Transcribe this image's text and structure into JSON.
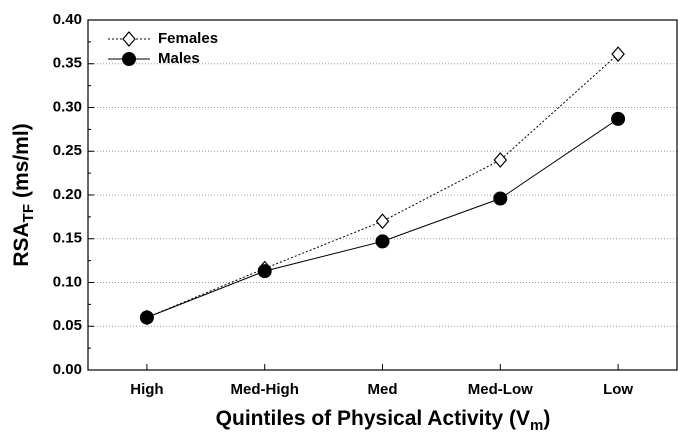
{
  "chart_data": {
    "type": "line",
    "x_label": {
      "main": "Quintiles of Physical Activity (V",
      "subscript": "m",
      "suffix": ")"
    },
    "y_label": {
      "main": "RSA",
      "subscript": "TF",
      "suffix": "(ms/ml)"
    },
    "categories": [
      "High",
      "Med-High",
      "Med",
      "Med-Low",
      "Low"
    ],
    "series": [
      {
        "name": "Females",
        "color": "#000000",
        "marker": "diamond",
        "marker_fill": "#ffffff",
        "dashed": true,
        "values": [
          0.06,
          0.116,
          0.17,
          0.24,
          0.361
        ]
      },
      {
        "name": "Males",
        "color": "#000000",
        "marker": "circle",
        "marker_fill": "#000000",
        "dashed": false,
        "values": [
          0.06,
          0.113,
          0.147,
          0.196,
          0.287
        ]
      }
    ],
    "ylim": [
      0,
      0.4
    ],
    "yticks": [
      {
        "value": 0,
        "label": "0.00"
      },
      {
        "value": 0.05,
        "label": "0.05"
      },
      {
        "value": 0.1,
        "label": "0.10"
      },
      {
        "value": 0.15,
        "label": "0.15"
      },
      {
        "value": 0.2,
        "label": "0.20"
      },
      {
        "value": 0.25,
        "label": "0.25"
      },
      {
        "value": 0.3,
        "label": "0.30"
      },
      {
        "value": 0.35,
        "label": "0.35"
      },
      {
        "value": 0.4,
        "label": "0.40"
      }
    ],
    "grid": true,
    "legend": "top-left"
  }
}
